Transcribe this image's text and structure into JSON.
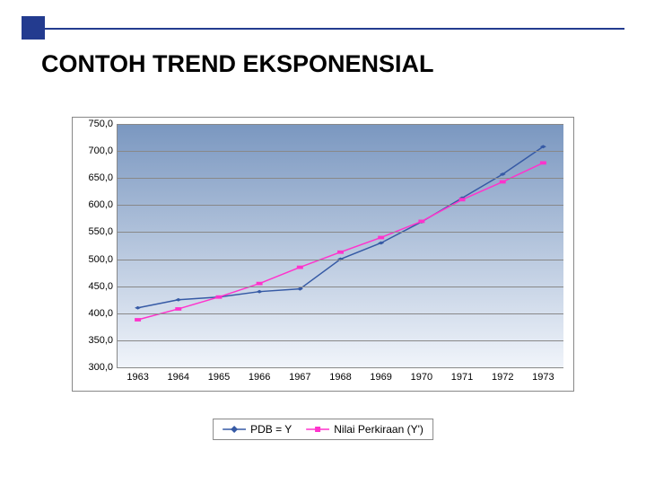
{
  "accent": {
    "square_fill": "#233b8f",
    "line_color": "#233b8f"
  },
  "title": {
    "text": "CONTOH TREND EKSPONENSIAL",
    "fontsize": 27
  },
  "chart": {
    "type": "line",
    "bg_gradient_top": "#7a97c0",
    "bg_gradient_bottom": "#f0f4fa",
    "grid_color": "#888888",
    "axis_fontsize": 11,
    "x": {
      "labels": [
        "1963",
        "1964",
        "1965",
        "1966",
        "1967",
        "1968",
        "1969",
        "1970",
        "1971",
        "1972",
        "1973"
      ]
    },
    "y": {
      "min": 300,
      "max": 750,
      "step": 50,
      "labels": [
        "300,0",
        "350,0",
        "400,0",
        "450,0",
        "500,0",
        "550,0",
        "600,0",
        "650,0",
        "700,0",
        "750,0"
      ]
    },
    "series": [
      {
        "name": "PDB = Y",
        "color": "#365aa5",
        "marker": "diamond",
        "line_width": 1.5,
        "marker_size": 7,
        "values": [
          410,
          425,
          430,
          440,
          445,
          500,
          530,
          569,
          613,
          657,
          708
        ]
      },
      {
        "name": "Nilai Perkiraan (Y')",
        "color": "#ff33cc",
        "marker": "square",
        "line_width": 1.5,
        "marker_size": 7,
        "values": [
          388,
          408,
          430,
          455,
          485,
          513,
          540,
          570,
          610,
          643,
          678
        ]
      }
    ],
    "legend": {
      "border_color": "#888888",
      "bg": "#ffffff",
      "fontsize": 12
    }
  }
}
